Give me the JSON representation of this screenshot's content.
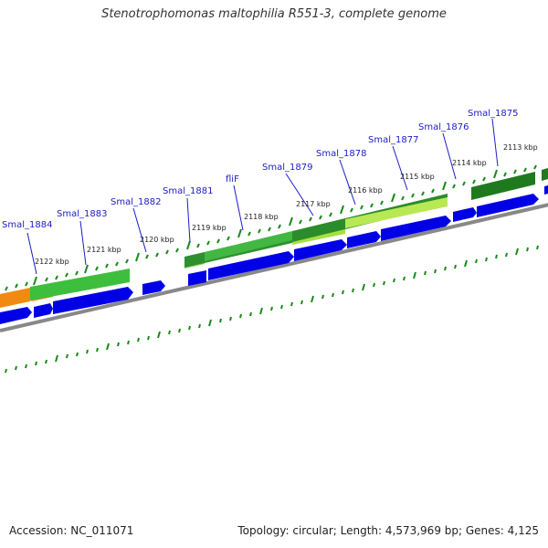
{
  "title": "Stenotrophomonas maltophilia R551-3, complete genome",
  "footer": {
    "accession": "Accession: NC_011071",
    "summary": "Topology: circular; Length: 4,573,969 bp; Genes: 4,125"
  },
  "colors": {
    "cds_arrow": "#0000e6",
    "feature_green": "#2fae2f",
    "feature_light_green": "#a8e040",
    "feature_dark_green": "#1f7a1f",
    "feature_orange": "#f08a12",
    "backbone": "#888888",
    "tick": "#1a8a1a",
    "gene_label": "#1c1cc6"
  },
  "gene_labels": [
    "Smal_1884",
    "Smal_1883",
    "Smal_1882",
    "Smal_1881",
    "fliF",
    "Smal_1879",
    "Smal_1878",
    "Smal_1877",
    "Smal_1876",
    "Smal_1875"
  ],
  "kbp_labels": [
    "2122 kbp",
    "2121 kbp",
    "2120 kbp",
    "2119 kbp",
    "2118 kbp",
    "2117 kbp",
    "2116 kbp",
    "2115 kbp",
    "2114 kbp",
    "2113 kbp"
  ]
}
